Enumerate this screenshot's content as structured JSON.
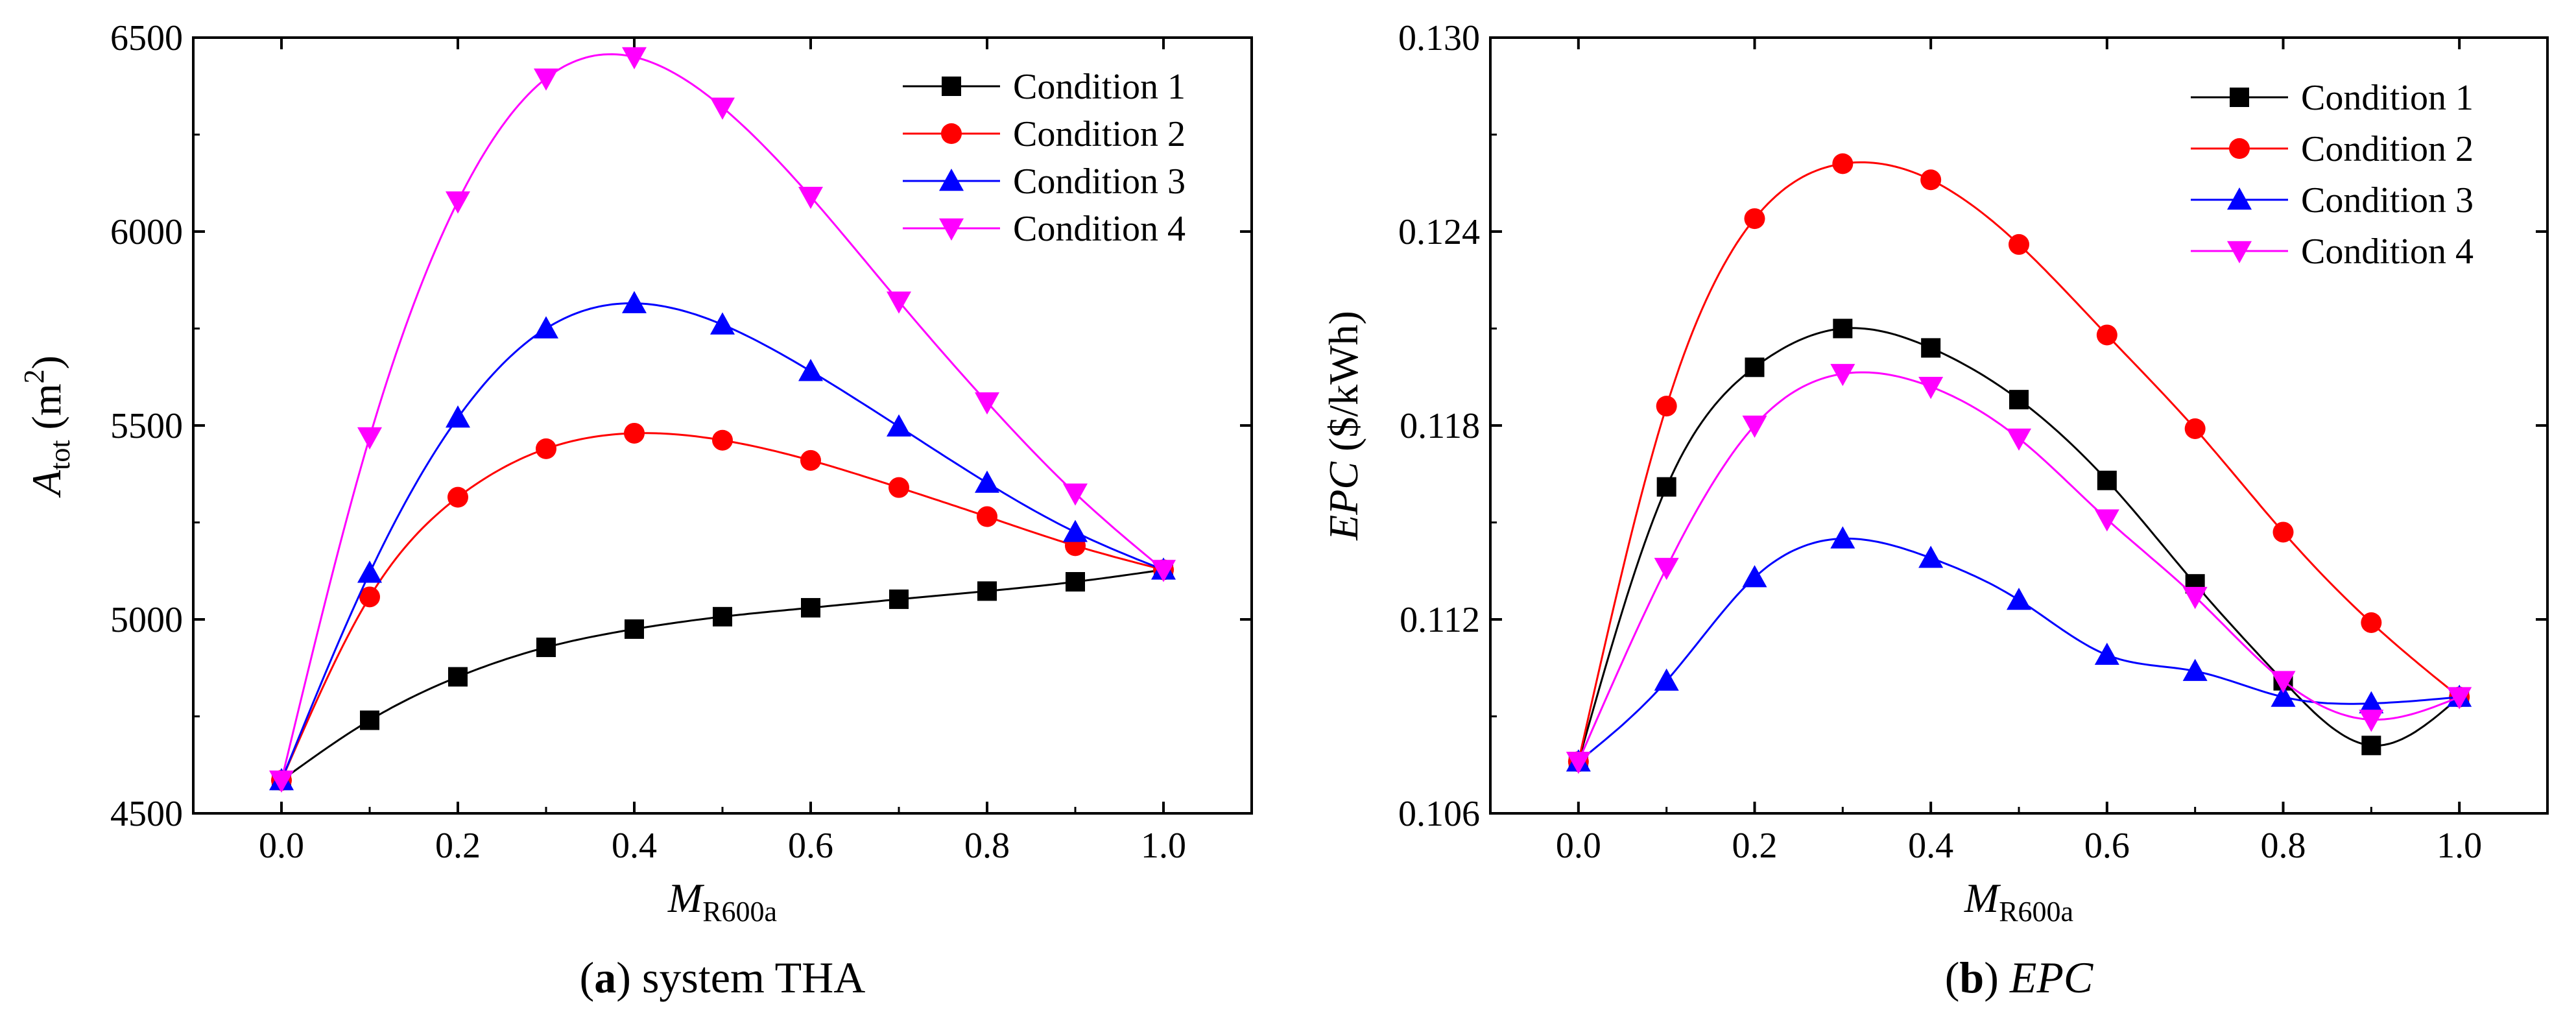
{
  "chart_data": [
    {
      "id": "a",
      "type": "line",
      "title": "",
      "caption": {
        "letter": "a",
        "text": "system THA",
        "text_italic": false
      },
      "xlabel": {
        "main": "M",
        "sub": "R600a"
      },
      "ylabel": {
        "main": "A",
        "sub": "tot",
        "units_open": " (m",
        "sup": "2",
        "units_close": ")"
      },
      "xlim": [
        -0.1,
        1.1
      ],
      "ylim": [
        4500,
        6500
      ],
      "xticks": [
        0.0,
        0.2,
        0.4,
        0.6,
        0.8,
        1.0
      ],
      "xtick_labels": [
        "0.0",
        "0.2",
        "0.4",
        "0.6",
        "0.8",
        "1.0"
      ],
      "yticks": [
        4500,
        5000,
        5500,
        6000,
        6500
      ],
      "ytick_labels": [
        "4500",
        "5000",
        "5500",
        "6000",
        "6500"
      ],
      "grid": false,
      "legend_position": "top-right",
      "x": [
        0.0,
        0.1,
        0.2,
        0.3,
        0.4,
        0.5,
        0.6,
        0.7,
        0.8,
        0.9,
        1.0
      ],
      "series": [
        {
          "name": "Condition 1",
          "color": "#000000",
          "marker": "square",
          "values": [
            4585,
            4740,
            4852,
            4928,
            4975,
            5007,
            5030,
            5052,
            5073,
            5097,
            5128
          ]
        },
        {
          "name": "Condition 2",
          "color": "#ff0000",
          "marker": "circle",
          "values": [
            4585,
            5058,
            5315,
            5440,
            5480,
            5462,
            5410,
            5340,
            5265,
            5190,
            5128
          ]
        },
        {
          "name": "Condition 3",
          "color": "#0000ff",
          "marker": "triangle-up",
          "values": [
            4585,
            5120,
            5520,
            5750,
            5815,
            5760,
            5640,
            5497,
            5352,
            5225,
            5128
          ]
        },
        {
          "name": "Condition 4",
          "color": "#ff00ff",
          "marker": "triangle-down",
          "values": [
            4585,
            5470,
            6078,
            6395,
            6450,
            6320,
            6090,
            5820,
            5560,
            5325,
            5128
          ]
        }
      ]
    },
    {
      "id": "b",
      "type": "line",
      "title": "",
      "caption": {
        "letter": "b",
        "text": "EPC",
        "text_italic": true
      },
      "xlabel": {
        "main": "M",
        "sub": "R600a"
      },
      "ylabel": {
        "main": "EPC",
        "sub": "",
        "units_open": " ($/kWh)",
        "sup": "",
        "units_close": ""
      },
      "xlim": [
        -0.1,
        1.1
      ],
      "ylim": [
        0.106,
        0.13
      ],
      "xticks": [
        0.0,
        0.2,
        0.4,
        0.6,
        0.8,
        1.0
      ],
      "xtick_labels": [
        "0.0",
        "0.2",
        "0.4",
        "0.6",
        "0.8",
        "1.0"
      ],
      "yticks": [
        0.106,
        0.112,
        0.118,
        0.124,
        0.13
      ],
      "ytick_labels": [
        "0.106",
        "0.112",
        "0.118",
        "0.124",
        "0.130"
      ],
      "grid": false,
      "legend_position": "top-right",
      "x": [
        0.0,
        0.1,
        0.2,
        0.3,
        0.4,
        0.5,
        0.6,
        0.7,
        0.8,
        0.9,
        1.0
      ],
      "series": [
        {
          "name": "Condition 1",
          "color": "#000000",
          "marker": "square",
          "values": [
            0.1076,
            0.1161,
            0.1198,
            0.121,
            0.1204,
            0.1188,
            0.1163,
            0.1131,
            0.1101,
            0.1081,
            0.1096
          ]
        },
        {
          "name": "Condition 2",
          "color": "#ff0000",
          "marker": "circle",
          "values": [
            0.1076,
            0.1186,
            0.1244,
            0.1261,
            0.1256,
            0.1236,
            0.1208,
            0.1179,
            0.1147,
            0.1119,
            0.1096
          ]
        },
        {
          "name": "Condition 3",
          "color": "#0000ff",
          "marker": "triangle-up",
          "values": [
            0.1076,
            0.1101,
            0.1133,
            0.1145,
            0.1139,
            0.1126,
            0.1109,
            0.1104,
            0.1096,
            0.1094,
            0.1096
          ]
        },
        {
          "name": "Condition 4",
          "color": "#ff00ff",
          "marker": "triangle-down",
          "values": [
            0.1076,
            0.1136,
            0.118,
            0.1196,
            0.1192,
            0.1176,
            0.1151,
            0.1127,
            0.1101,
            0.1089,
            0.1096
          ]
        }
      ]
    }
  ]
}
